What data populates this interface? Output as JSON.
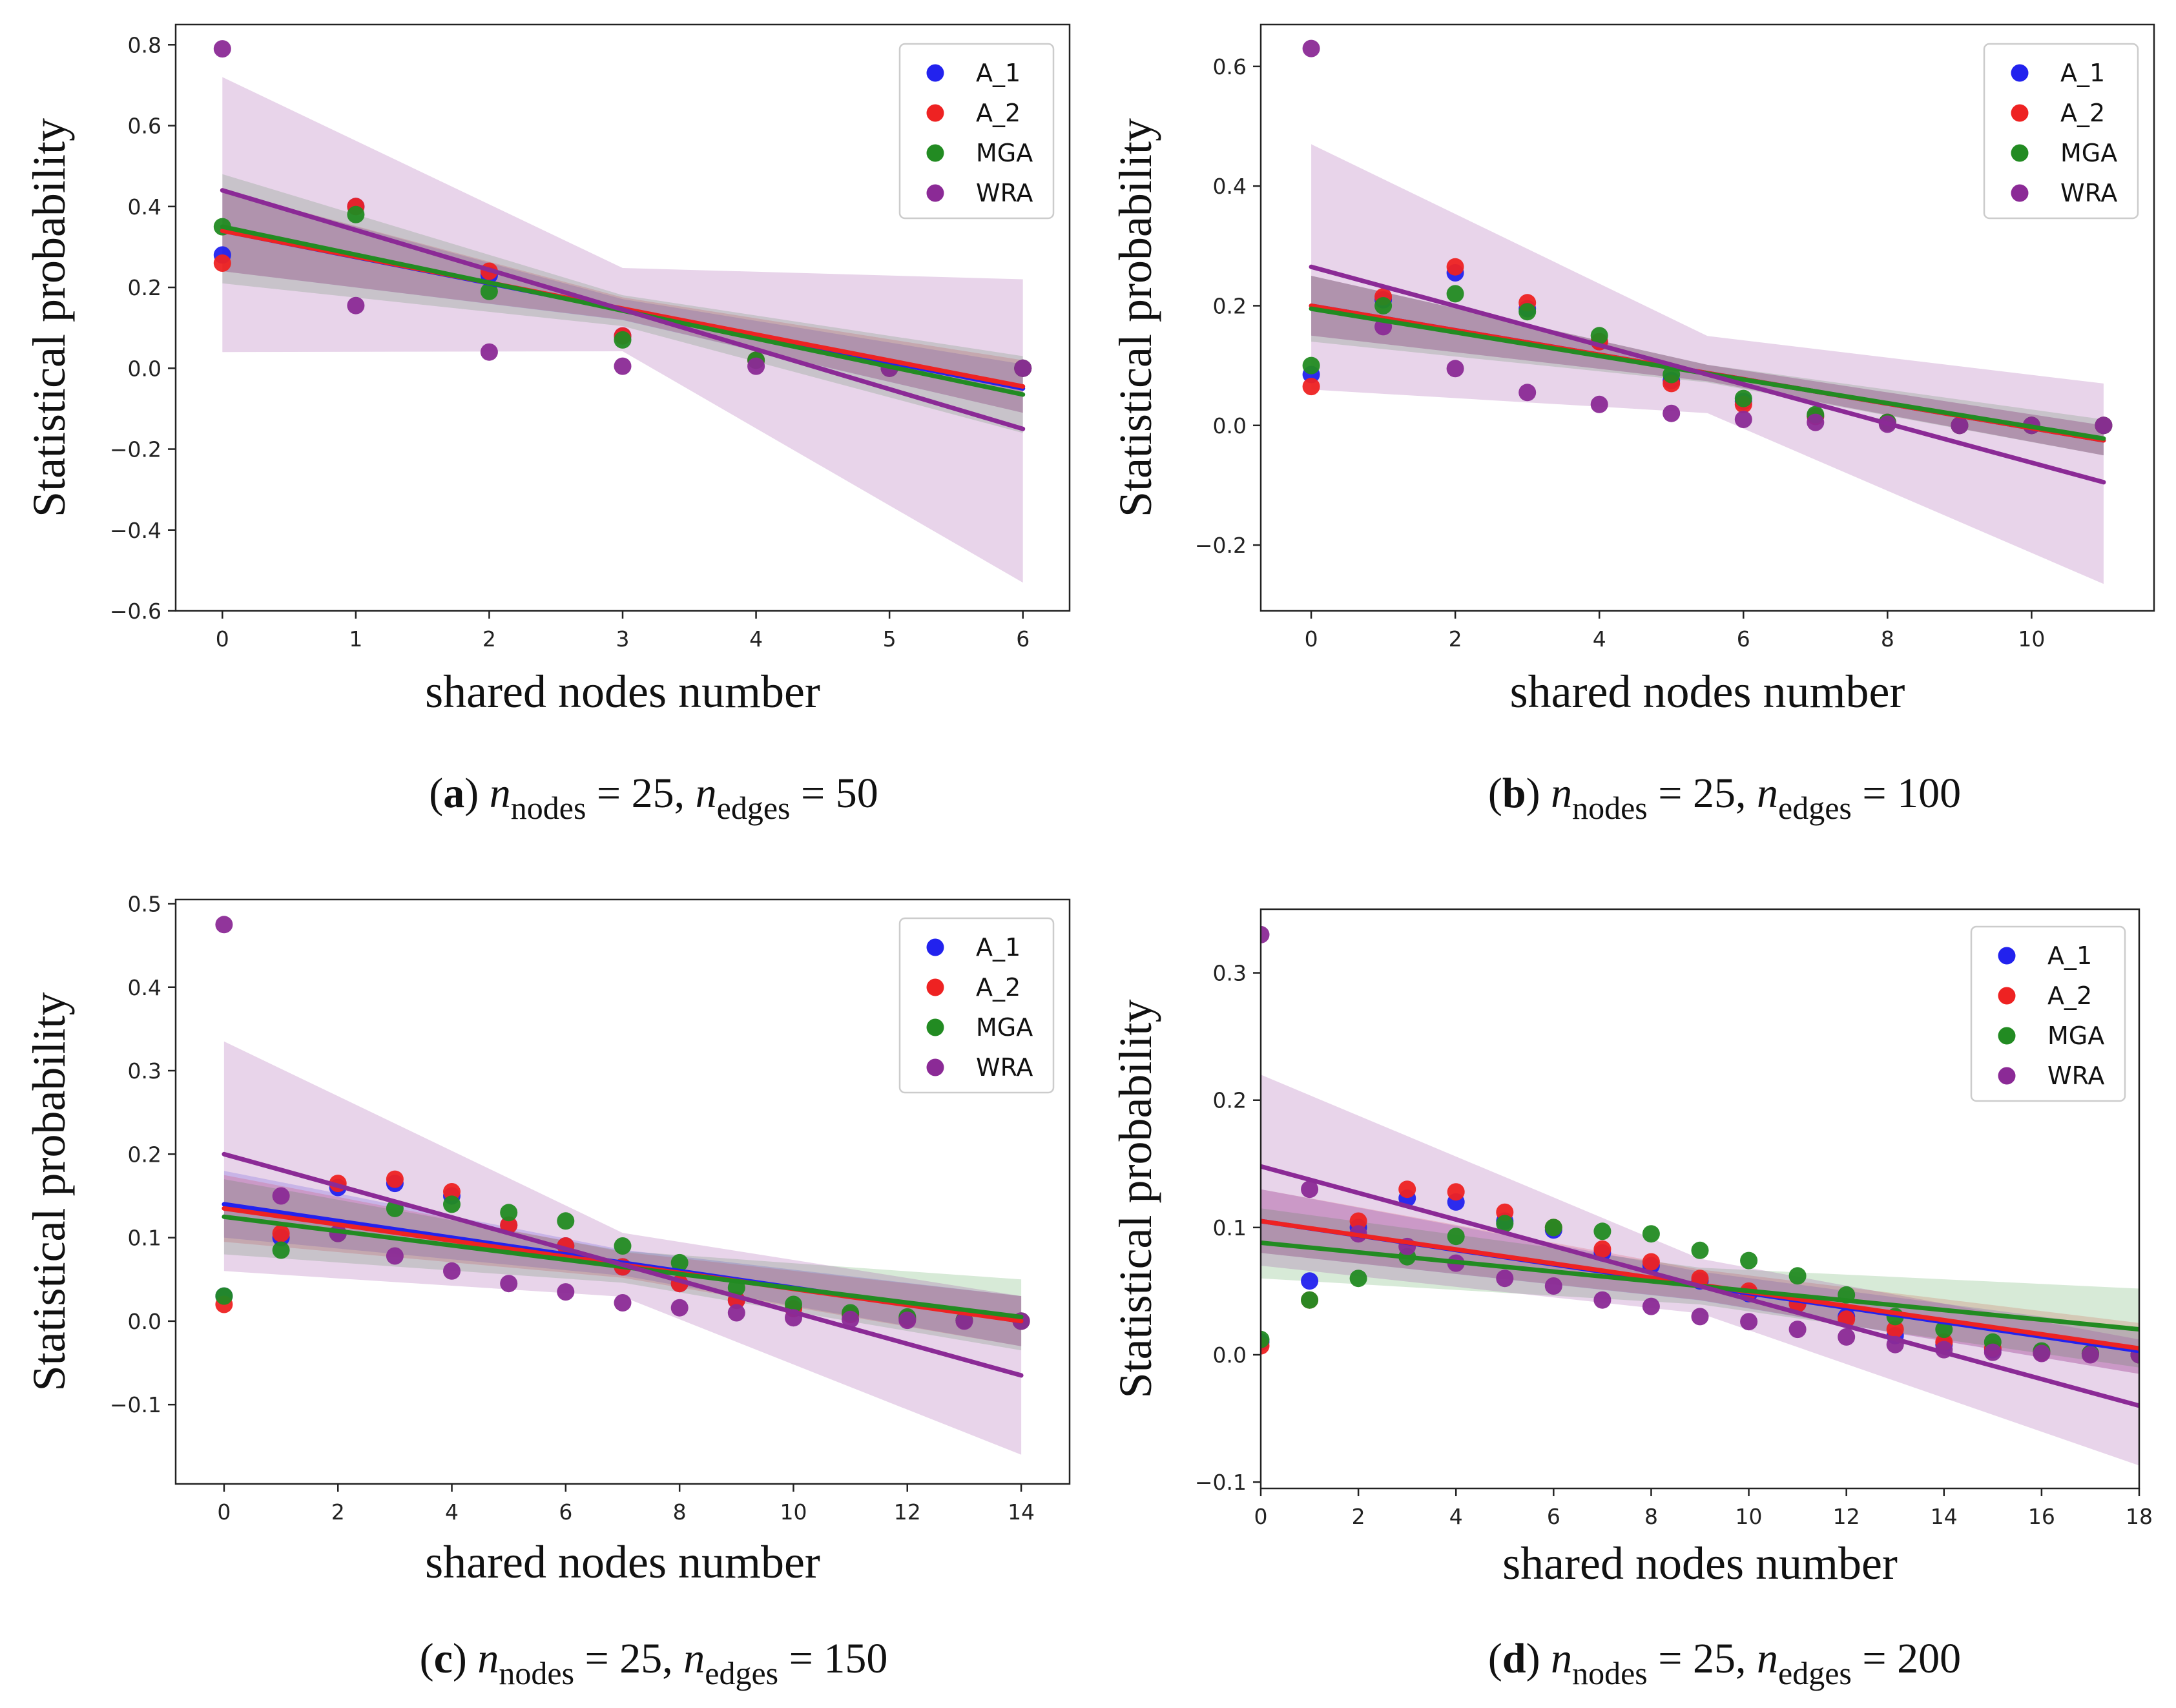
{
  "colors": {
    "A_1": "#2222ee",
    "A_2": "#ee2222",
    "MGA": "#228b22",
    "WRA": "#8b2a96"
  },
  "chart_data": [
    {
      "type": "scatter",
      "id": "a",
      "caption": {
        "letter": "a",
        "n_nodes": "25",
        "n_edges": "50",
        "sub_nodes": "nodes",
        "sub_edges": "edges",
        "n": "n"
      },
      "xlabel": "shared nodes number",
      "ylabel": "Statistical probability",
      "xlim": [
        -0.35,
        6.35
      ],
      "ylim": [
        -0.6,
        0.85
      ],
      "xticks": [
        0,
        1,
        2,
        3,
        4,
        5,
        6
      ],
      "xticklabels": [
        "0",
        "1",
        "2",
        "3",
        "4",
        "5",
        "6"
      ],
      "yticks": [
        -0.6,
        -0.4,
        -0.2,
        0.0,
        0.2,
        0.4,
        0.6,
        0.8
      ],
      "yticklabels": [
        "−0.6",
        "−0.4",
        "−0.2",
        "0.0",
        "0.2",
        "0.4",
        "0.6",
        "0.8"
      ],
      "legend": [
        "A_1",
        "A_2",
        "MGA",
        "WRA"
      ],
      "series": [
        {
          "name": "A_1",
          "x": [
            0,
            1,
            2,
            3,
            4,
            5,
            6
          ],
          "y": [
            0.28,
            0.4,
            0.23,
            0.08,
            0.02,
            0.0,
            0.0
          ],
          "fit": [
            0.34,
            -0.05
          ],
          "band": [
            [
              0.24,
              0.44
            ],
            [
              -0.11,
              0.01
            ]
          ]
        },
        {
          "name": "A_2",
          "x": [
            0,
            1,
            2,
            3,
            4,
            5,
            6
          ],
          "y": [
            0.26,
            0.4,
            0.24,
            0.08,
            0.02,
            0.0,
            0.0
          ],
          "fit": [
            0.34,
            -0.045
          ],
          "band": [
            [
              0.24,
              0.44
            ],
            [
              -0.11,
              0.02
            ]
          ]
        },
        {
          "name": "MGA",
          "x": [
            0,
            1,
            2,
            3,
            4,
            5,
            6
          ],
          "y": [
            0.35,
            0.38,
            0.19,
            0.07,
            0.02,
            0.0,
            0.0
          ],
          "fit": [
            0.35,
            -0.065
          ],
          "band": [
            [
              0.21,
              0.48
            ],
            [
              -0.16,
              0.03
            ]
          ]
        },
        {
          "name": "WRA",
          "x": [
            0,
            1,
            2,
            3,
            4,
            5,
            6
          ],
          "y": [
            0.79,
            0.155,
            0.04,
            0.005,
            0.005,
            0.0,
            0.0
          ],
          "fit": [
            0.44,
            -0.15
          ],
          "band": [
            [
              0.04,
              0.72
            ],
            [
              -0.53,
              0.22
            ]
          ]
        }
      ]
    },
    {
      "type": "scatter",
      "id": "b",
      "caption": {
        "letter": "b",
        "n_nodes": "25",
        "n_edges": "100",
        "sub_nodes": "nodes",
        "sub_edges": "edges",
        "n": "n"
      },
      "xlabel": "shared nodes number",
      "ylabel": "Statistical probability",
      "xlim": [
        -0.7,
        11.7
      ],
      "ylim": [
        -0.31,
        0.67
      ],
      "xticks": [
        0,
        2,
        4,
        6,
        8,
        10
      ],
      "xticklabels": [
        "0",
        "2",
        "4",
        "6",
        "8",
        "10"
      ],
      "yticks": [
        -0.2,
        0.0,
        0.2,
        0.4,
        0.6
      ],
      "yticklabels": [
        "−0.2",
        "0.0",
        "0.2",
        "0.4",
        "0.6"
      ],
      "legend": [
        "A_1",
        "A_2",
        "MGA",
        "WRA"
      ],
      "series": [
        {
          "name": "A_1",
          "x": [
            0,
            1,
            2,
            3,
            4,
            5,
            6,
            7,
            8,
            9,
            10,
            11
          ],
          "y": [
            0.085,
            0.21,
            0.255,
            0.195,
            0.14,
            0.075,
            0.04,
            0.015,
            0.005,
            0.0,
            0.0,
            0.0
          ],
          "fit": [
            0.2,
            -0.025
          ],
          "band": [
            [
              0.15,
              0.25
            ],
            [
              -0.05,
              0.0
            ]
          ]
        },
        {
          "name": "A_2",
          "x": [
            0,
            1,
            2,
            3,
            4,
            5,
            6,
            7,
            8,
            9,
            10,
            11
          ],
          "y": [
            0.065,
            0.215,
            0.265,
            0.205,
            0.14,
            0.07,
            0.035,
            0.015,
            0.005,
            0.0,
            0.0,
            0.0
          ],
          "fit": [
            0.2,
            -0.025
          ],
          "band": [
            [
              0.15,
              0.25
            ],
            [
              -0.05,
              0.0
            ]
          ]
        },
        {
          "name": "MGA",
          "x": [
            0,
            1,
            2,
            3,
            4,
            5,
            6,
            7,
            8,
            9,
            10,
            11
          ],
          "y": [
            0.1,
            0.2,
            0.22,
            0.19,
            0.15,
            0.085,
            0.045,
            0.018,
            0.005,
            0.0,
            0.0,
            0.0
          ],
          "fit": [
            0.195,
            -0.022
          ],
          "band": [
            [
              0.14,
              0.25
            ],
            [
              -0.05,
              0.01
            ]
          ]
        },
        {
          "name": "WRA",
          "x": [
            0,
            1,
            2,
            3,
            4,
            5,
            6,
            7,
            8,
            9,
            10,
            11
          ],
          "y": [
            0.63,
            0.165,
            0.095,
            0.055,
            0.035,
            0.02,
            0.01,
            0.005,
            0.002,
            0.0,
            0.0,
            0.0
          ],
          "fit": [
            0.265,
            -0.095
          ],
          "band": [
            [
              0.06,
              0.47
            ],
            [
              -0.265,
              0.07
            ]
          ]
        }
      ]
    },
    {
      "type": "scatter",
      "id": "c",
      "caption": {
        "letter": "c",
        "n_nodes": "25",
        "n_edges": "150",
        "sub_nodes": "nodes",
        "sub_edges": "edges",
        "n": "n"
      },
      "xlabel": "shared nodes number",
      "ylabel": "Statistical probability",
      "xlim": [
        -0.85,
        14.85
      ],
      "ylim": [
        -0.195,
        0.505
      ],
      "xticks": [
        0,
        2,
        4,
        6,
        8,
        10,
        12,
        14
      ],
      "xticklabels": [
        "0",
        "2",
        "4",
        "6",
        "8",
        "10",
        "12",
        "14"
      ],
      "yticks": [
        -0.1,
        0.0,
        0.1,
        0.2,
        0.3,
        0.4,
        0.5
      ],
      "yticklabels": [
        "−0.1",
        "0.0",
        "0.1",
        "0.2",
        "0.3",
        "0.4",
        "0.5"
      ],
      "legend": [
        "A_1",
        "A_2",
        "MGA",
        "WRA"
      ],
      "series": [
        {
          "name": "A_1",
          "x": [
            0,
            1,
            2,
            3,
            4,
            5,
            6,
            7,
            8,
            9,
            10,
            11,
            12,
            13,
            14
          ],
          "y": [
            0.03,
            0.1,
            0.16,
            0.165,
            0.15,
            0.115,
            0.09,
            0.065,
            0.045,
            0.025,
            0.015,
            0.008,
            0.003,
            0.001,
            0.0
          ],
          "fit": [
            0.14,
            0.0
          ],
          "band": [
            [
              0.1,
              0.18
            ],
            [
              -0.03,
              0.03
            ]
          ]
        },
        {
          "name": "A_2",
          "x": [
            0,
            1,
            2,
            3,
            4,
            5,
            6,
            7,
            8,
            9,
            10,
            11,
            12,
            13,
            14
          ],
          "y": [
            0.02,
            0.105,
            0.165,
            0.17,
            0.155,
            0.115,
            0.09,
            0.065,
            0.045,
            0.025,
            0.015,
            0.008,
            0.003,
            0.001,
            0.0
          ],
          "fit": [
            0.135,
            0.0
          ],
          "band": [
            [
              0.095,
              0.175
            ],
            [
              -0.03,
              0.03
            ]
          ]
        },
        {
          "name": "MGA",
          "x": [
            0,
            1,
            2,
            3,
            4,
            5,
            6,
            7,
            8,
            9,
            10,
            11,
            12,
            13,
            14
          ],
          "y": [
            0.03,
            0.085,
            0.105,
            0.135,
            0.14,
            0.13,
            0.12,
            0.09,
            0.07,
            0.04,
            0.02,
            0.01,
            0.005,
            0.001,
            0.0
          ],
          "fit": [
            0.125,
            0.005
          ],
          "band": [
            [
              0.08,
              0.17
            ],
            [
              -0.035,
              0.05
            ]
          ]
        },
        {
          "name": "WRA",
          "x": [
            0,
            1,
            2,
            3,
            4,
            5,
            6,
            7,
            8,
            9,
            10,
            11,
            12,
            13,
            14
          ],
          "y": [
            0.475,
            0.15,
            0.105,
            0.078,
            0.06,
            0.045,
            0.035,
            0.022,
            0.016,
            0.01,
            0.004,
            0.002,
            0.001,
            0.0,
            0.0
          ],
          "fit": [
            0.2,
            -0.065
          ],
          "band": [
            [
              0.06,
              0.335
            ],
            [
              -0.16,
              0.03
            ]
          ]
        }
      ]
    },
    {
      "type": "scatter",
      "id": "d",
      "caption": {
        "letter": "d",
        "n_nodes": "25",
        "n_edges": "200",
        "sub_nodes": "nodes",
        "sub_edges": "edges",
        "n": "n"
      },
      "xlabel": "shared nodes number",
      "ylabel": "Statistical probability",
      "xlim": [
        0,
        18
      ],
      "ylim": [
        -0.105,
        0.35
      ],
      "xticks": [
        0,
        2,
        4,
        6,
        8,
        10,
        12,
        14,
        16,
        18
      ],
      "xticklabels": [
        "0",
        "2",
        "4",
        "6",
        "8",
        "10",
        "12",
        "14",
        "16",
        "18"
      ],
      "yticks": [
        -0.1,
        0.0,
        0.1,
        0.2,
        0.3
      ],
      "yticklabels": [
        "−0.1",
        "0.0",
        "0.1",
        "0.2",
        "0.3"
      ],
      "legend": [
        "A_1",
        "A_2",
        "MGA",
        "WRA"
      ],
      "series": [
        {
          "name": "A_1",
          "x": [
            0,
            1,
            2,
            3,
            4,
            5,
            6,
            7,
            8,
            9,
            10,
            11,
            12,
            13,
            14,
            15,
            16,
            17,
            18
          ],
          "y": [
            0.01,
            0.058,
            0.1,
            0.123,
            0.12,
            0.105,
            0.098,
            0.08,
            0.07,
            0.058,
            0.048,
            0.04,
            0.03,
            0.015,
            0.008,
            0.004,
            0.002,
            0.001,
            0.0
          ],
          "fit": [
            0.105,
            0.003
          ],
          "band": [
            [
              0.08,
              0.13
            ],
            [
              -0.015,
              0.02
            ]
          ]
        },
        {
          "name": "A_2",
          "x": [
            0,
            1,
            2,
            3,
            4,
            5,
            6,
            7,
            8,
            9,
            10,
            11,
            12,
            13,
            14,
            15,
            16,
            17,
            18
          ],
          "y": [
            0.007,
            0.043,
            0.105,
            0.13,
            0.128,
            0.112,
            0.1,
            0.083,
            0.073,
            0.06,
            0.05,
            0.04,
            0.028,
            0.02,
            0.01,
            0.005,
            0.002,
            0.001,
            0.0
          ],
          "fit": [
            0.105,
            0.005
          ],
          "band": [
            [
              0.08,
              0.13
            ],
            [
              -0.015,
              0.025
            ]
          ]
        },
        {
          "name": "MGA",
          "x": [
            0,
            1,
            2,
            3,
            4,
            5,
            6,
            7,
            8,
            9,
            10,
            11,
            12,
            13,
            14,
            15,
            16,
            17,
            18
          ],
          "y": [
            0.012,
            0.043,
            0.06,
            0.077,
            0.093,
            0.103,
            0.1,
            0.097,
            0.095,
            0.082,
            0.074,
            0.062,
            0.047,
            0.03,
            0.02,
            0.01,
            0.003,
            0.001,
            0.0
          ],
          "fit": [
            0.088,
            0.02
          ],
          "band": [
            [
              0.06,
              0.115
            ],
            [
              -0.01,
              0.052
            ]
          ]
        },
        {
          "name": "WRA",
          "x": [
            0,
            1,
            2,
            3,
            4,
            5,
            6,
            7,
            8,
            9,
            10,
            11,
            12,
            13,
            14,
            15,
            16,
            17,
            18
          ],
          "y": [
            0.33,
            0.13,
            0.095,
            0.085,
            0.072,
            0.06,
            0.054,
            0.043,
            0.038,
            0.03,
            0.026,
            0.02,
            0.014,
            0.008,
            0.004,
            0.002,
            0.001,
            0.0,
            0.0
          ],
          "fit": [
            0.148,
            -0.04
          ],
          "band": [
            [
              0.07,
              0.22
            ],
            [
              -0.087,
              0.012
            ]
          ]
        }
      ]
    }
  ]
}
